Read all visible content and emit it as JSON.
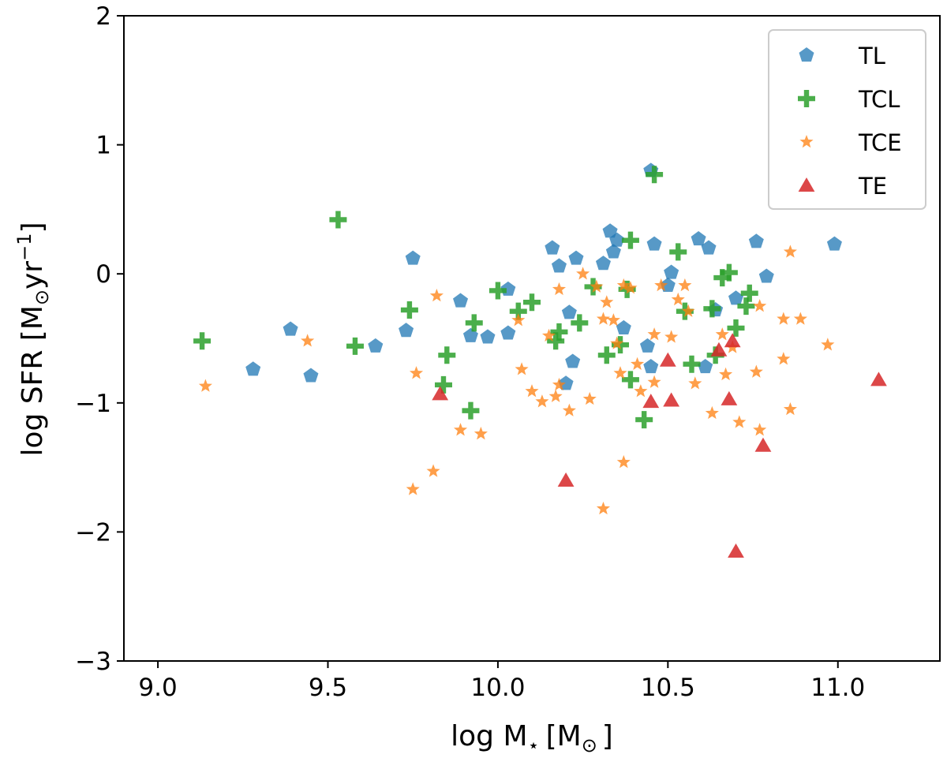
{
  "chart_data": {
    "type": "scatter",
    "title": "",
    "xlabel": {
      "prefix": "log M",
      "sub": "⋆",
      "unit_open": "[M",
      "unit_sub": "⊙",
      "unit_close": "]"
    },
    "ylabel": {
      "prefix": "log SFR [M",
      "sub": "⊙",
      "mid": "yr",
      "sup": "−1",
      "close": "]"
    },
    "xlim": [
      8.9,
      11.3
    ],
    "ylim": [
      -3,
      2
    ],
    "xticks": [
      9.0,
      9.5,
      10.0,
      10.5,
      11.0
    ],
    "xtick_labels": [
      "9.0",
      "9.5",
      "10.0",
      "10.5",
      "11.0"
    ],
    "yticks": [
      -3,
      -2,
      -1,
      0,
      1,
      2
    ],
    "ytick_labels": [
      "−3",
      "−2",
      "−1",
      "0",
      "1",
      "2"
    ],
    "grid": false,
    "legend_position": "top-right",
    "series": [
      {
        "name": "TL",
        "marker": "pentagon",
        "color": "#1f77b4",
        "points": [
          [
            9.28,
            -0.74
          ],
          [
            9.39,
            -0.43
          ],
          [
            9.45,
            -0.79
          ],
          [
            9.64,
            -0.56
          ],
          [
            9.73,
            -0.44
          ],
          [
            9.75,
            0.12
          ],
          [
            9.89,
            -0.21
          ],
          [
            9.92,
            -0.48
          ],
          [
            9.97,
            -0.49
          ],
          [
            10.03,
            -0.12
          ],
          [
            10.03,
            -0.46
          ],
          [
            10.16,
            0.2
          ],
          [
            10.18,
            0.06
          ],
          [
            10.2,
            -0.85
          ],
          [
            10.21,
            -0.3
          ],
          [
            10.22,
            -0.68
          ],
          [
            10.23,
            0.12
          ],
          [
            10.31,
            0.08
          ],
          [
            10.33,
            0.33
          ],
          [
            10.34,
            0.17
          ],
          [
            10.35,
            0.26
          ],
          [
            10.37,
            -0.42
          ],
          [
            10.44,
            -0.56
          ],
          [
            10.45,
            -0.72
          ],
          [
            10.45,
            0.8
          ],
          [
            10.46,
            0.23
          ],
          [
            10.5,
            -0.09
          ],
          [
            10.51,
            0.01
          ],
          [
            10.59,
            0.27
          ],
          [
            10.61,
            -0.72
          ],
          [
            10.62,
            0.2
          ],
          [
            10.64,
            -0.28
          ],
          [
            10.7,
            -0.19
          ],
          [
            10.76,
            0.25
          ],
          [
            10.79,
            -0.02
          ],
          [
            10.99,
            0.23
          ]
        ]
      },
      {
        "name": "TCL",
        "marker": "plus",
        "color": "#2ca02c",
        "points": [
          [
            9.13,
            -0.52
          ],
          [
            9.53,
            0.42
          ],
          [
            9.58,
            -0.56
          ],
          [
            9.74,
            -0.28
          ],
          [
            9.84,
            -0.86
          ],
          [
            9.85,
            -0.63
          ],
          [
            9.92,
            -1.06
          ],
          [
            9.93,
            -0.38
          ],
          [
            10.0,
            -0.13
          ],
          [
            10.06,
            -0.29
          ],
          [
            10.1,
            -0.22
          ],
          [
            10.17,
            -0.52
          ],
          [
            10.18,
            -0.45
          ],
          [
            10.24,
            -0.38
          ],
          [
            10.28,
            -0.1
          ],
          [
            10.32,
            -0.63
          ],
          [
            10.36,
            -0.55
          ],
          [
            10.38,
            -0.12
          ],
          [
            10.39,
            -0.82
          ],
          [
            10.39,
            0.26
          ],
          [
            10.43,
            -1.13
          ],
          [
            10.46,
            0.77
          ],
          [
            10.53,
            0.17
          ],
          [
            10.55,
            -0.29
          ],
          [
            10.57,
            -0.7
          ],
          [
            10.63,
            -0.27
          ],
          [
            10.64,
            -0.63
          ],
          [
            10.66,
            -0.03
          ],
          [
            10.68,
            0.01
          ],
          [
            10.7,
            -0.42
          ],
          [
            10.73,
            -0.25
          ],
          [
            10.74,
            -0.15
          ]
        ]
      },
      {
        "name": "TCE",
        "marker": "star",
        "color": "#ff7f0e",
        "points": [
          [
            9.14,
            -0.87
          ],
          [
            9.44,
            -0.52
          ],
          [
            9.75,
            -1.67
          ],
          [
            9.76,
            -0.77
          ],
          [
            9.81,
            -1.53
          ],
          [
            9.82,
            -0.17
          ],
          [
            9.89,
            -1.21
          ],
          [
            9.95,
            -1.24
          ],
          [
            10.06,
            -0.36
          ],
          [
            10.07,
            -0.74
          ],
          [
            10.1,
            -0.91
          ],
          [
            10.13,
            -0.99
          ],
          [
            10.15,
            -0.48
          ],
          [
            10.17,
            -0.95
          ],
          [
            10.18,
            -0.86
          ],
          [
            10.18,
            -0.12
          ],
          [
            10.21,
            -1.06
          ],
          [
            10.25,
            0.0
          ],
          [
            10.27,
            -0.97
          ],
          [
            10.29,
            -0.1
          ],
          [
            10.31,
            -0.35
          ],
          [
            10.31,
            -1.82
          ],
          [
            10.32,
            -0.22
          ],
          [
            10.34,
            -0.36
          ],
          [
            10.35,
            -0.54
          ],
          [
            10.36,
            -0.77
          ],
          [
            10.37,
            -0.09
          ],
          [
            10.37,
            -1.46
          ],
          [
            10.39,
            -0.11
          ],
          [
            10.41,
            -0.7
          ],
          [
            10.42,
            -0.91
          ],
          [
            10.46,
            -0.47
          ],
          [
            10.46,
            -0.84
          ],
          [
            10.48,
            -0.09
          ],
          [
            10.51,
            -0.49
          ],
          [
            10.53,
            -0.2
          ],
          [
            10.55,
            -0.09
          ],
          [
            10.56,
            -0.29
          ],
          [
            10.58,
            -0.85
          ],
          [
            10.63,
            -1.08
          ],
          [
            10.66,
            -0.47
          ],
          [
            10.67,
            -0.78
          ],
          [
            10.69,
            -0.57
          ],
          [
            10.71,
            -1.15
          ],
          [
            10.76,
            -0.76
          ],
          [
            10.77,
            -0.25
          ],
          [
            10.77,
            -1.21
          ],
          [
            10.84,
            -0.35
          ],
          [
            10.84,
            -0.66
          ],
          [
            10.86,
            0.17
          ],
          [
            10.86,
            -1.05
          ],
          [
            10.89,
            -0.35
          ],
          [
            10.97,
            -0.55
          ]
        ]
      },
      {
        "name": "TE",
        "marker": "triangle",
        "color": "#d62728",
        "points": [
          [
            9.83,
            -0.93
          ],
          [
            10.2,
            -1.6
          ],
          [
            10.45,
            -0.99
          ],
          [
            10.5,
            -0.67
          ],
          [
            10.51,
            -0.98
          ],
          [
            10.65,
            -0.59
          ],
          [
            10.68,
            -0.97
          ],
          [
            10.69,
            -0.52
          ],
          [
            10.7,
            -2.15
          ],
          [
            10.78,
            -1.33
          ],
          [
            11.12,
            -0.82
          ]
        ]
      }
    ]
  }
}
